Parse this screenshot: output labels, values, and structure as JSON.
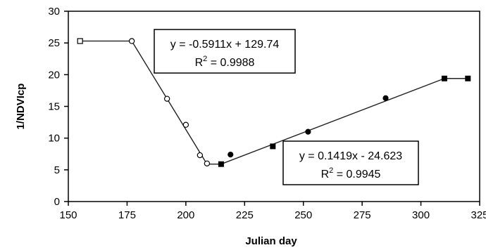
{
  "chart_data": {
    "type": "scatter",
    "title": "",
    "xlabel": "Julian day",
    "ylabel": "1/NDVIcp",
    "xlim": [
      150,
      325
    ],
    "ylim": [
      0,
      30
    ],
    "x_ticks": [
      150,
      175,
      200,
      225,
      250,
      275,
      300,
      325
    ],
    "y_ticks": [
      0,
      5,
      10,
      15,
      20,
      25,
      30
    ],
    "grid": false,
    "legend": "none",
    "series": [
      {
        "marker": "open-square",
        "points": [
          [
            155,
            25.3
          ]
        ]
      },
      {
        "marker": "open-circle",
        "points": [
          [
            177,
            25.3
          ],
          [
            192,
            16.2
          ],
          [
            200,
            12.1
          ],
          [
            206,
            7.3
          ],
          [
            209,
            6.0
          ]
        ]
      },
      {
        "marker": "filled-circle",
        "points": [
          [
            219,
            7.4
          ],
          [
            252,
            11.0
          ],
          [
            285,
            16.3
          ]
        ]
      },
      {
        "marker": "filled-square",
        "points": [
          [
            215,
            5.9
          ],
          [
            237,
            8.7
          ],
          [
            310,
            19.4
          ],
          [
            320,
            19.4
          ]
        ]
      }
    ],
    "lines": [
      {
        "points": [
          [
            155,
            25.3
          ],
          [
            177,
            25.3
          ]
        ]
      },
      {
        "points": [
          [
            177,
            25.3
          ],
          [
            209,
            5.9
          ]
        ]
      },
      {
        "points": [
          [
            209,
            5.9
          ],
          [
            215,
            5.9
          ]
        ]
      },
      {
        "points": [
          [
            215,
            5.9
          ],
          [
            310,
            19.4
          ]
        ]
      },
      {
        "points": [
          [
            310,
            19.4
          ],
          [
            320,
            19.4
          ]
        ]
      }
    ],
    "annotations": [
      {
        "equation": "y = -0.5911x + 129.74",
        "r2_label": "R",
        "r2_sup": "2",
        "r2_value": " = 0.9988"
      },
      {
        "equation": "y = 0.1419x - 24.623",
        "r2_label": "R",
        "r2_sup": "2",
        "r2_value": " = 0.9945"
      }
    ]
  }
}
